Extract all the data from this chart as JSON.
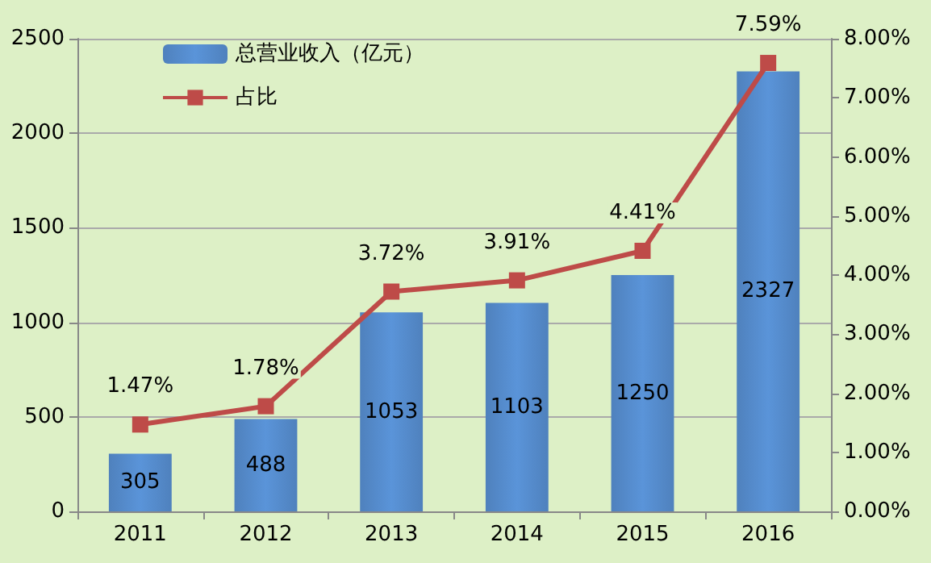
{
  "chart_data": {
    "type": "bar",
    "categories": [
      "2011",
      "2012",
      "2013",
      "2014",
      "2015",
      "2016"
    ],
    "series": [
      {
        "name": "总营业收入（亿元）",
        "color": "#4f81bd",
        "values": [
          305,
          488,
          1053,
          1103,
          1250,
          2327
        ],
        "value_labels": [
          "305",
          "488",
          "1053",
          "1103",
          "1250",
          "2327"
        ]
      },
      {
        "name": "占比",
        "type": "line",
        "axis": "y2",
        "color": "#be4b48",
        "values": [
          1.47,
          1.78,
          3.72,
          3.91,
          4.41,
          7.59
        ],
        "value_labels": [
          "1.47%",
          "1.78%",
          "3.72%",
          "3.91%",
          "4.41%",
          "7.59%"
        ]
      }
    ],
    "ylim": [
      0,
      2500
    ],
    "yticks": [
      0,
      500,
      1000,
      1500,
      2000,
      2500
    ],
    "y2lim": [
      0,
      8
    ],
    "y2ticks": [
      {
        "value": 0,
        "label": "0.00%"
      },
      {
        "value": 1,
        "label": "1.00%"
      },
      {
        "value": 2,
        "label": "2.00%"
      },
      {
        "value": 3,
        "label": "3.00%"
      },
      {
        "value": 4,
        "label": "4.00%"
      },
      {
        "value": 5,
        "label": "5.00%"
      },
      {
        "value": 6,
        "label": "6.00%"
      },
      {
        "value": 7,
        "label": "7.00%"
      },
      {
        "value": 8,
        "label": "8.00%"
      }
    ],
    "grid": "y",
    "legend": "top left",
    "marker": "square",
    "line_style": "solid"
  }
}
